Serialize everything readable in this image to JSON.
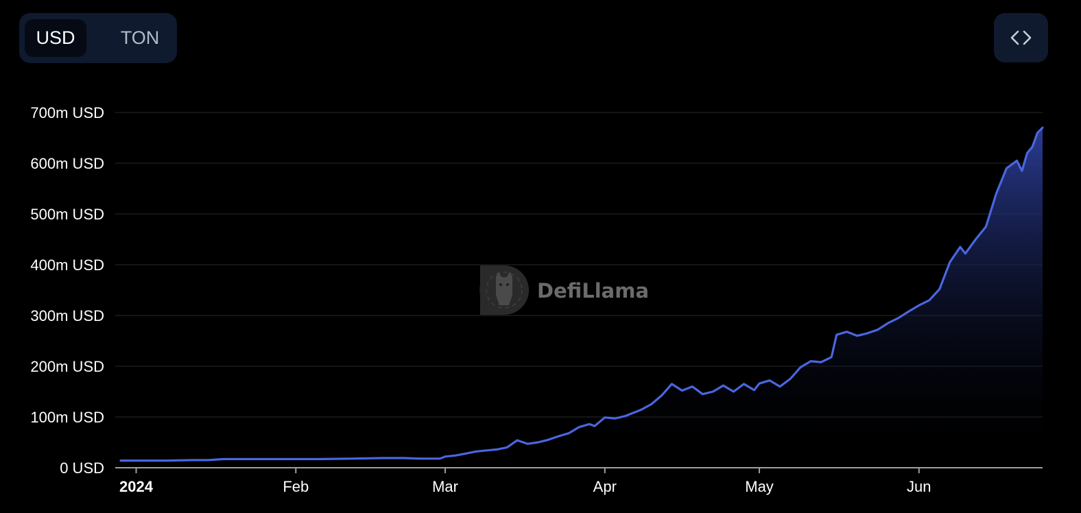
{
  "toggle": {
    "usd_label": "USD",
    "ton_label": "TON",
    "selected": "USD"
  },
  "embed": {
    "icon": "code-icon"
  },
  "watermark": {
    "text": "DefiLlama",
    "icon": "llama-logo-icon"
  },
  "colors": {
    "line": "#4a66e0",
    "area_top": "#2d3f9c",
    "grid": "#222222",
    "toggle_bg": "#0f1a2e"
  },
  "chart_data": {
    "type": "area",
    "title": "",
    "xlabel": "",
    "ylabel": "",
    "ylim": [
      0,
      700
    ],
    "y_unit": "m USD",
    "yticks": [
      {
        "value": 0,
        "label": "0 USD"
      },
      {
        "value": 100,
        "label": "100m USD"
      },
      {
        "value": 200,
        "label": "200m USD"
      },
      {
        "value": 300,
        "label": "300m USD"
      },
      {
        "value": 400,
        "label": "400m USD"
      },
      {
        "value": 500,
        "label": "500m USD"
      },
      {
        "value": 600,
        "label": "600m USD"
      },
      {
        "value": 700,
        "label": "700m USD"
      }
    ],
    "xlim": [
      "2023-12-29",
      "2024-06-25"
    ],
    "xticks": [
      {
        "date": "2024-01-01",
        "label": "2024",
        "bold": true
      },
      {
        "date": "2024-02-01",
        "label": "Feb",
        "bold": false
      },
      {
        "date": "2024-03-01",
        "label": "Mar",
        "bold": false
      },
      {
        "date": "2024-04-01",
        "label": "Apr",
        "bold": false
      },
      {
        "date": "2024-05-01",
        "label": "May",
        "bold": false
      },
      {
        "date": "2024-06-01",
        "label": "Jun",
        "bold": false
      }
    ],
    "grid": true,
    "series": [
      {
        "points": [
          [
            "2023-12-29",
            14
          ],
          [
            "2024-01-01",
            14
          ],
          [
            "2024-01-07",
            14
          ],
          [
            "2024-01-12",
            15
          ],
          [
            "2024-01-15",
            15
          ],
          [
            "2024-01-18",
            17
          ],
          [
            "2024-01-24",
            17
          ],
          [
            "2024-01-31",
            17
          ],
          [
            "2024-02-06",
            17
          ],
          [
            "2024-02-12",
            18
          ],
          [
            "2024-02-18",
            19
          ],
          [
            "2024-02-22",
            19
          ],
          [
            "2024-02-25",
            18
          ],
          [
            "2024-02-29",
            18
          ],
          [
            "2024-03-01",
            22
          ],
          [
            "2024-03-03",
            24
          ],
          [
            "2024-03-05",
            28
          ],
          [
            "2024-03-07",
            32
          ],
          [
            "2024-03-09",
            34
          ],
          [
            "2024-03-11",
            36
          ],
          [
            "2024-03-13",
            40
          ],
          [
            "2024-03-15",
            54
          ],
          [
            "2024-03-17",
            47
          ],
          [
            "2024-03-19",
            50
          ],
          [
            "2024-03-21",
            55
          ],
          [
            "2024-03-23",
            62
          ],
          [
            "2024-03-25",
            68
          ],
          [
            "2024-03-27",
            80
          ],
          [
            "2024-03-29",
            86
          ],
          [
            "2024-03-30",
            82
          ],
          [
            "2024-04-01",
            99
          ],
          [
            "2024-04-03",
            97
          ],
          [
            "2024-04-05",
            102
          ],
          [
            "2024-04-08",
            114
          ],
          [
            "2024-04-10",
            125
          ],
          [
            "2024-04-12",
            142
          ],
          [
            "2024-04-14",
            165
          ],
          [
            "2024-04-16",
            152
          ],
          [
            "2024-04-18",
            160
          ],
          [
            "2024-04-20",
            145
          ],
          [
            "2024-04-22",
            150
          ],
          [
            "2024-04-24",
            162
          ],
          [
            "2024-04-26",
            150
          ],
          [
            "2024-04-28",
            165
          ],
          [
            "2024-04-30",
            153
          ],
          [
            "2024-05-01",
            166
          ],
          [
            "2024-05-03",
            172
          ],
          [
            "2024-05-05",
            160
          ],
          [
            "2024-05-07",
            175
          ],
          [
            "2024-05-09",
            198
          ],
          [
            "2024-05-11",
            210
          ],
          [
            "2024-05-13",
            208
          ],
          [
            "2024-05-15",
            218
          ],
          [
            "2024-05-16",
            262
          ],
          [
            "2024-05-18",
            268
          ],
          [
            "2024-05-20",
            260
          ],
          [
            "2024-05-22",
            265
          ],
          [
            "2024-05-24",
            272
          ],
          [
            "2024-05-26",
            285
          ],
          [
            "2024-05-28",
            295
          ],
          [
            "2024-05-30",
            308
          ],
          [
            "2024-06-01",
            320
          ],
          [
            "2024-06-03",
            330
          ],
          [
            "2024-06-05",
            352
          ],
          [
            "2024-06-07",
            405
          ],
          [
            "2024-06-09",
            435
          ],
          [
            "2024-06-10",
            422
          ],
          [
            "2024-06-12",
            450
          ],
          [
            "2024-06-14",
            475
          ],
          [
            "2024-06-16",
            540
          ],
          [
            "2024-06-18",
            590
          ],
          [
            "2024-06-20",
            605
          ],
          [
            "2024-06-21",
            585
          ],
          [
            "2024-06-22",
            620
          ],
          [
            "2024-06-23",
            632
          ],
          [
            "2024-06-24",
            660
          ],
          [
            "2024-06-25",
            670
          ]
        ]
      }
    ]
  }
}
